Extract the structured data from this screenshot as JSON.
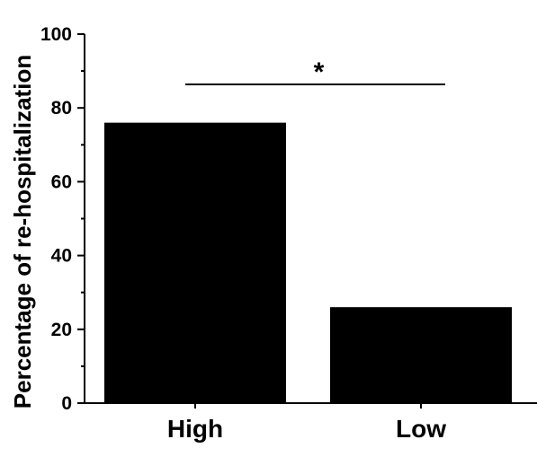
{
  "chart_data": {
    "type": "bar",
    "categories": [
      "High",
      "Low"
    ],
    "values": [
      76,
      26
    ],
    "title": "",
    "xlabel": "",
    "ylabel": "Percentage of re-hospitalization",
    "ylim": [
      0,
      100
    ],
    "yticks": [
      0,
      20,
      40,
      60,
      80,
      100
    ],
    "bar_color": "#000000",
    "grid": false,
    "legend": "none",
    "annotations": [
      {
        "type": "significance",
        "between": [
          "High",
          "Low"
        ],
        "label": "*"
      }
    ]
  }
}
